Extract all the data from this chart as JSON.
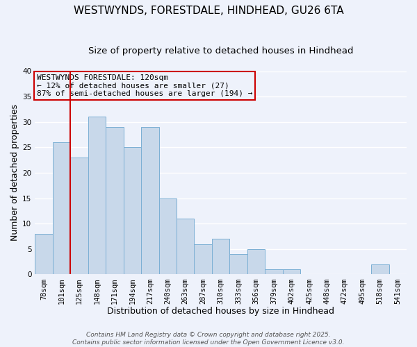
{
  "title": "WESTWYNDS, FORESTDALE, HINDHEAD, GU26 6TA",
  "subtitle": "Size of property relative to detached houses in Hindhead",
  "xlabel": "Distribution of detached houses by size in Hindhead",
  "ylabel": "Number of detached properties",
  "categories": [
    "78sqm",
    "101sqm",
    "125sqm",
    "148sqm",
    "171sqm",
    "194sqm",
    "217sqm",
    "240sqm",
    "263sqm",
    "287sqm",
    "310sqm",
    "333sqm",
    "356sqm",
    "379sqm",
    "402sqm",
    "425sqm",
    "448sqm",
    "472sqm",
    "495sqm",
    "518sqm",
    "541sqm"
  ],
  "values": [
    8,
    26,
    23,
    31,
    29,
    25,
    29,
    15,
    11,
    6,
    7,
    4,
    5,
    1,
    1,
    0,
    0,
    0,
    0,
    2,
    0
  ],
  "bar_color": "#c8d8ea",
  "bar_edge_color": "#7bafd4",
  "bar_width": 1.0,
  "vline_x_idx": 2,
  "vline_color": "#cc0000",
  "annotation_title": "WESTWYNDS FORESTDALE: 120sqm",
  "annotation_line2": "← 12% of detached houses are smaller (27)",
  "annotation_line3": "87% of semi-detached houses are larger (194) →",
  "annotation_box_edge": "#cc0000",
  "ylim": [
    0,
    40
  ],
  "yticks": [
    0,
    5,
    10,
    15,
    20,
    25,
    30,
    35,
    40
  ],
  "background_color": "#eef2fb",
  "grid_color": "#ffffff",
  "footer_line1": "Contains HM Land Registry data © Crown copyright and database right 2025.",
  "footer_line2": "Contains public sector information licensed under the Open Government Licence v3.0.",
  "title_fontsize": 11,
  "subtitle_fontsize": 9.5,
  "axis_label_fontsize": 9,
  "tick_fontsize": 7.5,
  "annotation_fontsize": 8,
  "footer_fontsize": 6.5
}
